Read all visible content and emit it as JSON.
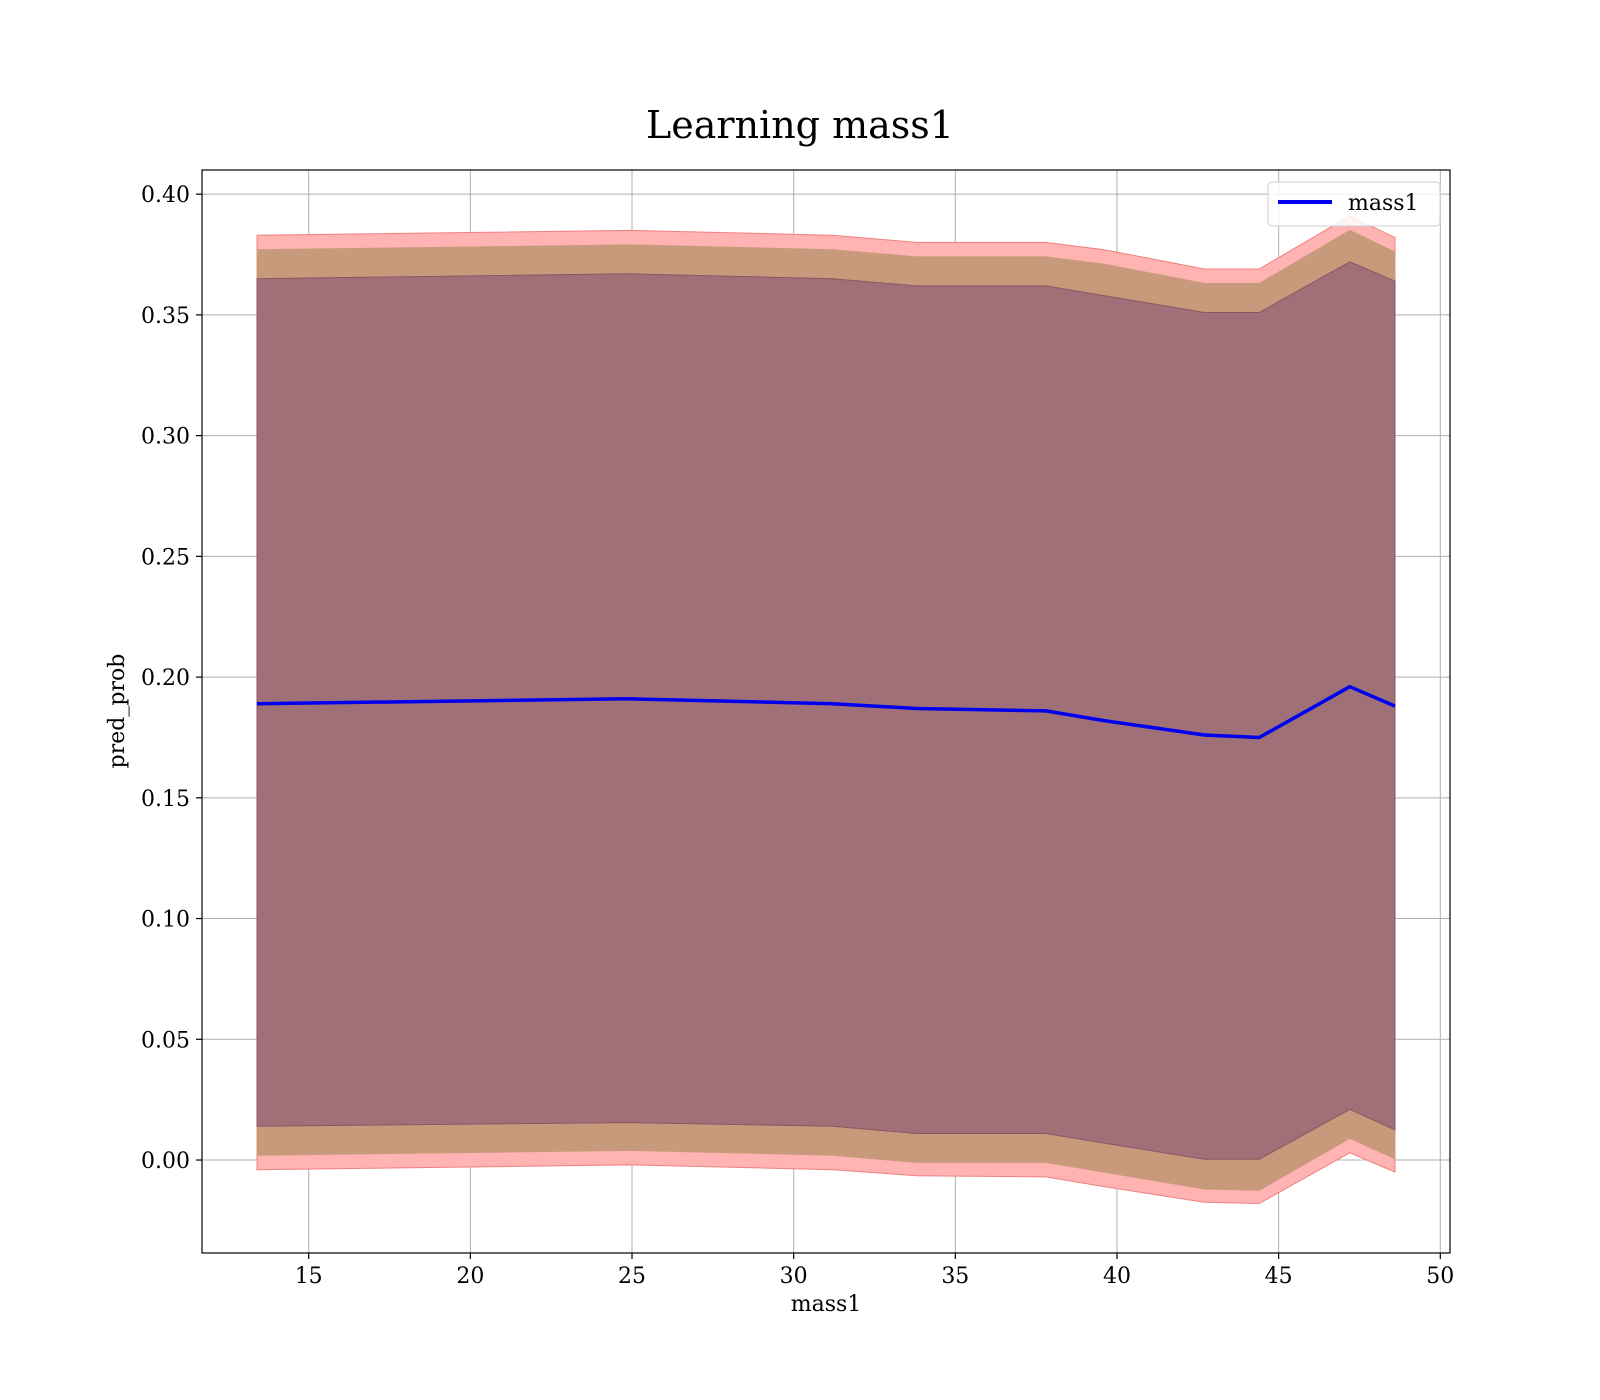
{
  "chart_data": {
    "type": "line",
    "title": "Learning mass1",
    "xlabel": "mass1",
    "ylabel": "pred_prob",
    "xlim": [
      11.7,
      50.3
    ],
    "ylim": [
      -0.0385,
      0.41
    ],
    "xticks": [
      15,
      20,
      25,
      30,
      35,
      40,
      45,
      50
    ],
    "yticks": [
      0.0,
      0.05,
      0.1,
      0.15,
      0.2,
      0.25,
      0.3,
      0.35,
      0.4
    ],
    "ytick_labels": [
      "0.00",
      "0.05",
      "0.10",
      "0.15",
      "0.20",
      "0.25",
      "0.30",
      "0.35",
      "0.40"
    ],
    "grid": true,
    "legend_position": "top-right",
    "colors": {
      "line": "#0000ee",
      "band_outer": "#ffb3b3",
      "band_outer_edge": "#f08080",
      "band_middle": "#c89a7b",
      "band_inner": "#a07079",
      "band_inner_edge": "#8a5565"
    },
    "x": [
      13.4,
      24.9,
      31.2,
      33.8,
      37.8,
      39.6,
      42.7,
      44.4,
      47.2,
      48.6
    ],
    "series": [
      {
        "name": "mass1",
        "values": [
          0.189,
          0.191,
          0.189,
          0.187,
          0.186,
          0.182,
          0.176,
          0.175,
          0.196,
          0.188
        ]
      }
    ],
    "bands": [
      {
        "lower": [
          -0.004,
          -0.002,
          -0.004,
          -0.0065,
          -0.007,
          -0.011,
          -0.0175,
          -0.018,
          0.003,
          -0.005
        ],
        "upper": [
          0.383,
          0.385,
          0.383,
          0.38,
          0.38,
          0.377,
          0.369,
          0.369,
          0.391,
          0.382
        ]
      },
      {
        "lower": [
          0.002,
          0.004,
          0.002,
          -0.001,
          -0.001,
          -0.005,
          -0.012,
          -0.0125,
          0.009,
          0.0005
        ],
        "upper": [
          0.377,
          0.379,
          0.377,
          0.374,
          0.374,
          0.371,
          0.363,
          0.363,
          0.385,
          0.376
        ]
      },
      {
        "lower": [
          0.014,
          0.0155,
          0.014,
          0.011,
          0.011,
          0.007,
          0.0003,
          0.0003,
          0.021,
          0.0125
        ],
        "upper": [
          0.365,
          0.367,
          0.365,
          0.362,
          0.362,
          0.358,
          0.351,
          0.351,
          0.372,
          0.364
        ]
      }
    ]
  }
}
